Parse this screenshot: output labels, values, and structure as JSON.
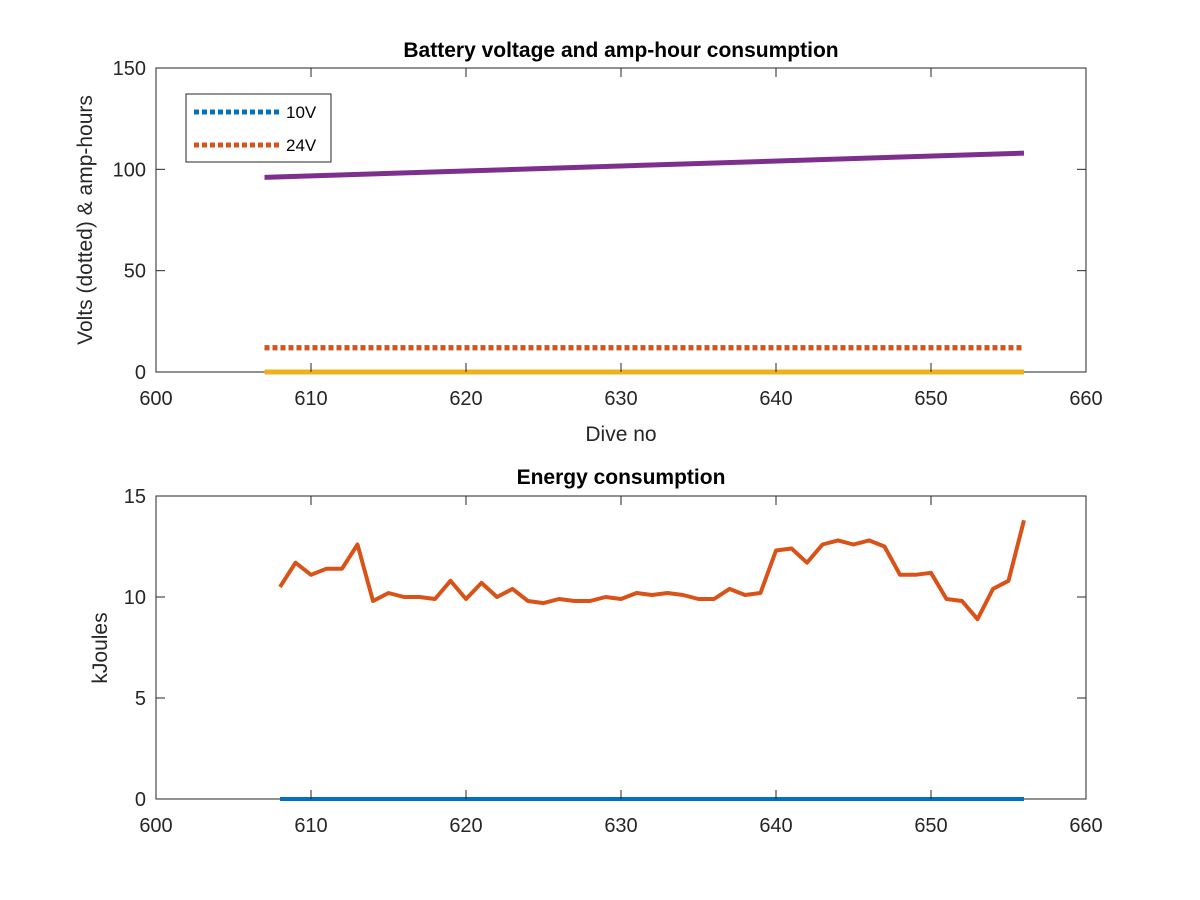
{
  "chart_data": [
    {
      "type": "line",
      "title": "Battery voltage and amp-hour consumption",
      "xlabel": "Dive no",
      "ylabel": "Volts (dotted) & amp-hours",
      "xlim": [
        600,
        660
      ],
      "ylim": [
        0,
        150
      ],
      "xticks": [
        "600",
        "610",
        "620",
        "630",
        "640",
        "650",
        "660"
      ],
      "yticks": [
        "0",
        "50",
        "100",
        "150"
      ],
      "grid": false,
      "legend": "top-left",
      "series": [
        {
          "name": "10V",
          "style": "dotted",
          "color": "#0072BD",
          "x": [
            607,
            656
          ],
          "y": [
            12,
            12
          ]
        },
        {
          "name": "24V",
          "style": "dotted",
          "color": "#D95319",
          "x": [
            607,
            656
          ],
          "y": [
            12,
            12
          ]
        },
        {
          "style": "solid",
          "color": "#7E2F8E",
          "x": [
            607,
            656
          ],
          "y": [
            96,
            108
          ]
        },
        {
          "style": "solid",
          "color": "#EDB120",
          "x": [
            607,
            656
          ],
          "y": [
            0,
            0
          ]
        }
      ]
    },
    {
      "type": "line",
      "title": "Energy consumption",
      "xlabel": "",
      "ylabel": "kJoules",
      "xlim": [
        600,
        660
      ],
      "ylim": [
        0,
        15
      ],
      "xticks": [
        "600",
        "610",
        "620",
        "630",
        "640",
        "650",
        "660"
      ],
      "yticks": [
        "0",
        "5",
        "10",
        "15"
      ],
      "grid": false,
      "series": [
        {
          "style": "solid",
          "color": "#D95319",
          "x": [
            608,
            609,
            610,
            611,
            612,
            613,
            614,
            615,
            616,
            617,
            618,
            619,
            620,
            621,
            622,
            623,
            624,
            625,
            626,
            627,
            628,
            629,
            630,
            631,
            632,
            633,
            634,
            635,
            636,
            637,
            638,
            639,
            640,
            641,
            642,
            643,
            644,
            645,
            646,
            647,
            648,
            649,
            650,
            651,
            652,
            653,
            654,
            655,
            656
          ],
          "y": [
            10.5,
            11.7,
            11.1,
            11.4,
            11.4,
            12.6,
            9.8,
            10.2,
            10.0,
            10.0,
            9.9,
            10.8,
            9.9,
            10.7,
            10.0,
            10.4,
            9.8,
            9.7,
            9.9,
            9.8,
            9.8,
            10.0,
            9.9,
            10.2,
            10.1,
            10.2,
            10.1,
            9.9,
            9.9,
            10.4,
            10.1,
            10.2,
            12.3,
            12.4,
            11.7,
            12.6,
            12.8,
            12.6,
            12.8,
            12.5,
            11.1,
            11.1,
            11.2,
            9.9,
            9.8,
            8.9,
            10.4,
            10.8,
            13.8
          ]
        },
        {
          "style": "solid",
          "color": "#0072BD",
          "x": [
            608,
            656
          ],
          "y": [
            0,
            0
          ]
        }
      ]
    }
  ]
}
